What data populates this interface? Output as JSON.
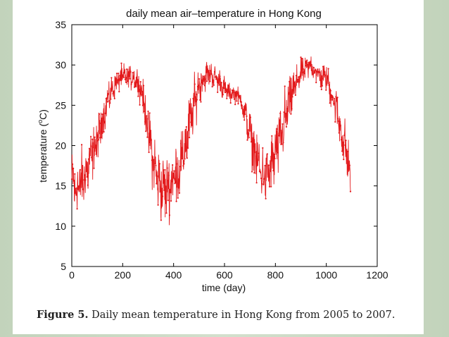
{
  "chart_data": {
    "type": "line",
    "title": "daily mean air–temperature in Hong Kong",
    "xlabel": "time (day)",
    "ylabel": "temperature (°C)",
    "ylabel_parts": {
      "pre": "temperature (",
      "sup": "o",
      "post": "C)"
    },
    "xlim": [
      0,
      1200
    ],
    "ylim": [
      5,
      35
    ],
    "xticks": [
      0,
      200,
      400,
      600,
      800,
      1000,
      1200
    ],
    "yticks": [
      5,
      10,
      15,
      20,
      25,
      30,
      35
    ],
    "series": [
      {
        "name": "daily mean temperature",
        "color": "#e31a1c",
        "marker": "point",
        "anchors_x": [
          0,
          20,
          40,
          60,
          80,
          100,
          120,
          140,
          160,
          180,
          200,
          220,
          240,
          260,
          280,
          300,
          320,
          340,
          360,
          380,
          400,
          420,
          440,
          460,
          480,
          500,
          520,
          540,
          560,
          580,
          600,
          620,
          640,
          660,
          680,
          700,
          720,
          740,
          760,
          780,
          800,
          820,
          840,
          860,
          880,
          900,
          920,
          940,
          960,
          980,
          1000,
          1020,
          1040,
          1060,
          1080,
          1095
        ],
        "anchors_y": [
          15.5,
          14.5,
          15.5,
          17,
          19,
          20.5,
          23,
          25.5,
          27,
          28,
          28.5,
          28.5,
          28.5,
          28,
          26,
          22,
          18,
          15.5,
          14.5,
          15,
          16,
          17,
          19,
          22,
          25,
          27.5,
          28.5,
          29,
          28.5,
          28,
          27,
          26.5,
          26.5,
          26,
          24,
          21.5,
          19,
          17,
          16,
          17,
          19,
          21,
          23.5,
          26,
          27.5,
          29,
          29.5,
          30,
          29,
          28.5,
          28.5,
          26.5,
          24.5,
          21.5,
          19,
          16
        ],
        "noise_amplitude": [
          2.8,
          2.8,
          2.6,
          2.6,
          2.2,
          2.0,
          1.6,
          1.4,
          1.1,
          1.0,
          1.2,
          1.0,
          1.0,
          1.1,
          1.5,
          2.2,
          2.6,
          2.8,
          2.8,
          2.8,
          2.8,
          2.8,
          2.6,
          2.6,
          2.2,
          1.6,
          1.2,
          1.1,
          1.0,
          1.0,
          1.0,
          0.8,
          0.7,
          0.8,
          1.2,
          1.8,
          2.2,
          2.4,
          2.2,
          2.4,
          2.6,
          2.6,
          2.4,
          2.0,
          1.6,
          1.2,
          1.0,
          0.9,
          1.0,
          1.1,
          1.1,
          1.4,
          1.6,
          2.0,
          2.2,
          2.2
        ]
      }
    ]
  },
  "caption": {
    "label": "Figure 5.",
    "text": "Daily mean temperature in Hong Kong from 2005 to 2007."
  },
  "colors": {
    "line": "#e31a1c",
    "axis": "#000000",
    "background": "#c9d8c3"
  }
}
